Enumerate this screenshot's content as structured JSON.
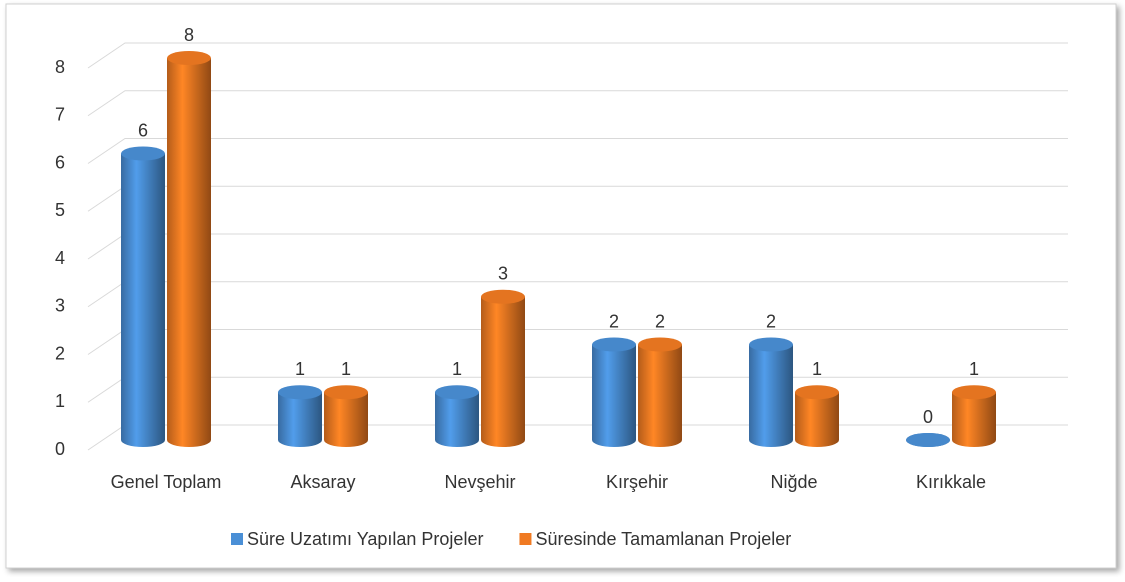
{
  "chart_data": {
    "type": "bar3d",
    "categories": [
      "Genel Toplam",
      "Aksaray",
      "Nevşehir",
      "Kırşehir",
      "Niğde",
      "Kırıkkale"
    ],
    "series": [
      {
        "name": "Süre Uzatımı Yapılan Projeler",
        "color": "#4a8fd6",
        "values": [
          6,
          1,
          1,
          2,
          2,
          0
        ]
      },
      {
        "name": "Süresinde Tamamlanan Projeler",
        "color": "#f07a22",
        "values": [
          8,
          1,
          3,
          2,
          1,
          1
        ]
      }
    ],
    "ylim": [
      0,
      8
    ],
    "yticks": [
      0,
      1,
      2,
      3,
      4,
      5,
      6,
      7,
      8
    ],
    "grid": true,
    "legend": "bottom"
  }
}
